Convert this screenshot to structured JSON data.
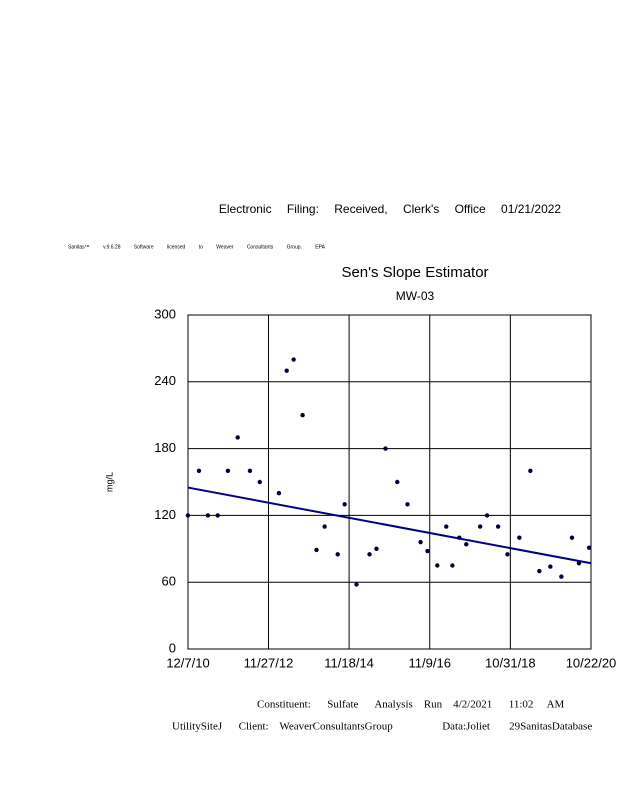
{
  "header": {
    "stamp": "Electronic Filing: Received, Clerk's Office 01/21/2022",
    "software": "Sanitas™ v.9.6.28 Software licensed to Weaver Consultants Group. EPA"
  },
  "chart_data": {
    "type": "scatter",
    "title": "Sen's Slope Estimator",
    "subtitle": "MW-03",
    "y_label": "mg/L",
    "x": [
      2010.93,
      2011.2,
      2011.42,
      2011.66,
      2011.91,
      2012.15,
      2012.45,
      2012.69,
      2013.16,
      2013.35,
      2013.52,
      2013.74,
      2014.08,
      2014.28,
      2014.6,
      2014.77,
      2015.06,
      2015.38,
      2015.55,
      2015.77,
      2016.06,
      2016.31,
      2016.63,
      2016.8,
      2017.04,
      2017.26,
      2017.41,
      2017.58,
      2017.75,
      2018.09,
      2018.26,
      2018.53,
      2018.76,
      2019.05,
      2019.32,
      2019.54,
      2019.81,
      2020.08,
      2020.34,
      2020.51,
      2020.76
    ],
    "series": [
      {
        "color": "#000033",
        "values": [
          120,
          160,
          120,
          120,
          160,
          190,
          160,
          150,
          140,
          250,
          260,
          210,
          89,
          110,
          85,
          130,
          58,
          85,
          90,
          180,
          150,
          130,
          96,
          88,
          75,
          110,
          75,
          100,
          94,
          110,
          120,
          110,
          85,
          100,
          160,
          70,
          74,
          65,
          100,
          77,
          91
        ]
      }
    ],
    "trend": {
      "color": "#000080",
      "x": [
        2010.932,
        2020.806
      ],
      "values": [
        145,
        77
      ]
    },
    "xlim": [
      2010.932,
      2020.806
    ],
    "xticks": [
      {
        "value": 2010.932,
        "label": "12/7/10"
      },
      {
        "value": 2012.904,
        "label": "11/27/12"
      },
      {
        "value": 2014.879,
        "label": "11/18/14"
      },
      {
        "value": 2016.855,
        "label": "11/9/16"
      },
      {
        "value": 2018.83,
        "label": "10/31/18"
      },
      {
        "value": 2020.806,
        "label": "10/22/20"
      }
    ],
    "ylim": [
      0,
      300
    ],
    "yticks": [
      0,
      60,
      120,
      180,
      240,
      300
    ],
    "grid": true
  },
  "footer": {
    "line1": "Constituent:      Sulfate      Analysis    Run    4/2/2021      11:02     AM",
    "line2": "UtilitySiteJ      Client:    WeaverConsultantsGroup                  Data:Joliet       29SanitasDatabase"
  }
}
